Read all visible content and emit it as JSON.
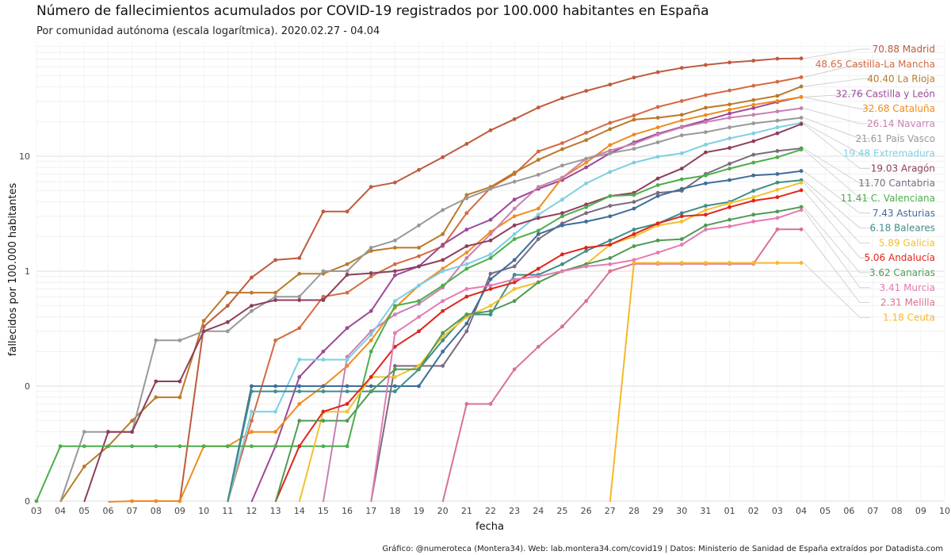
{
  "header": {
    "title": "Número de fallecimientos acumulados por COVID-19 registrados por 100.000 habitantes en España",
    "subtitle": "Por comunidad autónoma (escala logarítmica). 2020.02.27 - 04.04"
  },
  "caption": "Gráfico: @numeroteca (Montera34). Web: lab.montera34.com/covid19 | Datos: Ministerio de Sanidad de España extraídos por Datadista.com",
  "chart_data": {
    "type": "line",
    "title": "Número de fallecimientos acumulados por COVID-19 registrados por 100.000 habitantes en España",
    "xlabel": "fecha",
    "ylabel": "fallecidos por 100.000 habitantes",
    "y_scale": "log",
    "grid": true,
    "x": [
      "2020-03-03",
      "2020-03-04",
      "2020-03-05",
      "2020-03-06",
      "2020-03-07",
      "2020-03-08",
      "2020-03-09",
      "2020-03-10",
      "2020-03-11",
      "2020-03-12",
      "2020-03-13",
      "2020-03-14",
      "2020-03-15",
      "2020-03-16",
      "2020-03-17",
      "2020-03-18",
      "2020-03-19",
      "2020-03-20",
      "2020-03-21",
      "2020-03-22",
      "2020-03-23",
      "2020-03-24",
      "2020-03-25",
      "2020-03-26",
      "2020-03-27",
      "2020-03-28",
      "2020-03-29",
      "2020-03-30",
      "2020-03-31",
      "2020-04-01",
      "2020-04-02",
      "2020-04-03",
      "2020-04-04"
    ],
    "x_ticks": [
      "03",
      "04",
      "05",
      "06",
      "07",
      "08",
      "09",
      "10",
      "11",
      "12",
      "13",
      "14",
      "15",
      "16",
      "17",
      "18",
      "19",
      "20",
      "21",
      "22",
      "23",
      "24",
      "25",
      "26",
      "27",
      "28",
      "29",
      "30",
      "31",
      "01",
      "02",
      "03",
      "04",
      "05",
      "06",
      "07",
      "08",
      "09",
      "10"
    ],
    "y_ticks": [
      {
        "value": 0.01,
        "label": "0"
      },
      {
        "value": 0.1,
        "label": "0"
      },
      {
        "value": 1,
        "label": "1"
      },
      {
        "value": 10,
        "label": "10"
      }
    ],
    "ylim": [
      0.01,
      100
    ],
    "series": [
      {
        "name": "Madrid",
        "end_label": "70.88 Madrid",
        "color": "#be5b3d",
        "values": [
          null,
          null,
          null,
          null,
          null,
          null,
          null,
          0.33,
          0.5,
          0.88,
          1.25,
          1.3,
          3.3,
          3.3,
          5.4,
          5.9,
          7.6,
          9.8,
          12.8,
          16.8,
          21,
          26.5,
          32,
          37,
          42,
          48.3,
          53.8,
          58.6,
          62.2,
          65.4,
          67.7,
          70.5,
          70.88
        ]
      },
      {
        "name": "Castilla-La Mancha",
        "end_label": "48.65 Castilla-La Mancha",
        "color": "#d36b43",
        "values": [
          null,
          null,
          null,
          null,
          null,
          null,
          null,
          null,
          null,
          0.05,
          0.25,
          0.32,
          0.6,
          0.65,
          0.9,
          1.15,
          1.35,
          1.65,
          3.2,
          5.3,
          7,
          11,
          13,
          16,
          19.5,
          22.6,
          26.8,
          30.2,
          34,
          37.3,
          41,
          44.4,
          48.65
        ]
      },
      {
        "name": "La Rioja",
        "end_label": "40.40 La Rioja",
        "color": "#b97a2a",
        "values": [
          null,
          null,
          0.02,
          0.03,
          0.05,
          0.08,
          0.08,
          0.37,
          0.65,
          0.65,
          0.65,
          0.95,
          0.95,
          1.15,
          1.5,
          1.6,
          1.6,
          2.1,
          4.6,
          5.4,
          7.2,
          9.3,
          11.5,
          13.8,
          17.2,
          20.8,
          21.6,
          22.9,
          26.4,
          28.2,
          30.8,
          33.5,
          40.4
        ]
      },
      {
        "name": "Castilla y León",
        "end_label": "32.76 Castilla y León",
        "color": "#9d4898",
        "values": [
          null,
          null,
          null,
          null,
          null,
          null,
          null,
          null,
          null,
          null,
          0.03,
          0.12,
          0.2,
          0.32,
          0.45,
          0.92,
          1.1,
          1.7,
          2.3,
          2.8,
          4.2,
          5.2,
          6.2,
          8,
          10.6,
          13.2,
          15.7,
          18,
          20.5,
          23.5,
          26.2,
          29.6,
          32.76
        ]
      },
      {
        "name": "Cataluña",
        "end_label": "32.68 Cataluña",
        "color": "#f08c1c",
        "values": [
          null,
          null,
          null,
          null,
          0.01,
          0.01,
          0.01,
          0.03,
          0.03,
          0.04,
          0.04,
          0.07,
          0.1,
          0.15,
          0.25,
          0.48,
          0.75,
          1.05,
          1.45,
          2.2,
          3.0,
          3.5,
          6.5,
          8.8,
          12.5,
          15.4,
          17.8,
          20.5,
          22.8,
          25.4,
          28,
          30.2,
          32.68
        ]
      },
      {
        "name": "Navarra",
        "end_label": "26.14 Navarra",
        "color": "#c880b2",
        "values": [
          null,
          null,
          null,
          null,
          null,
          null,
          null,
          null,
          null,
          null,
          null,
          null,
          null,
          0.18,
          0.3,
          0.42,
          0.52,
          0.72,
          1.3,
          2.1,
          3.5,
          5.4,
          6.5,
          9.5,
          11.2,
          12.8,
          15.4,
          17.8,
          19.8,
          21.6,
          22.9,
          24.5,
          26.14
        ]
      },
      {
        "name": "País Vasco",
        "end_label": "21.61 País Vasco",
        "color": "#999999",
        "values": [
          null,
          null,
          0.04,
          0.04,
          0.04,
          0.25,
          0.25,
          0.3,
          0.3,
          0.45,
          0.6,
          0.6,
          1.0,
          1.0,
          1.6,
          1.85,
          2.5,
          3.4,
          4.3,
          5.2,
          6.0,
          6.9,
          8.3,
          9.5,
          10.6,
          11.6,
          13.2,
          15.2,
          16.2,
          17.8,
          19.3,
          20.4,
          21.61
        ]
      },
      {
        "name": "Extremadura",
        "end_label": "19.48 Extremadura",
        "color": "#7fcfe1",
        "values": [
          null,
          null,
          null,
          null,
          null,
          null,
          null,
          null,
          null,
          0.06,
          0.06,
          0.17,
          0.17,
          0.17,
          0.28,
          0.55,
          0.75,
          1.0,
          1.15,
          1.4,
          2.1,
          3.1,
          4.2,
          5.8,
          7.3,
          8.8,
          9.9,
          10.6,
          12.6,
          14.3,
          15.8,
          17.8,
          19.48
        ]
      },
      {
        "name": "Aragón",
        "end_label": "19.03 Aragón",
        "color": "#8e3e5c",
        "values": [
          null,
          null,
          null,
          0.04,
          0.04,
          0.11,
          0.11,
          0.3,
          0.36,
          0.5,
          0.56,
          0.56,
          0.56,
          0.93,
          0.96,
          1.0,
          1.1,
          1.25,
          1.65,
          1.85,
          2.5,
          2.9,
          3.2,
          3.8,
          4.5,
          4.8,
          6.4,
          7.8,
          10.8,
          11.8,
          13.5,
          15.8,
          19.03
        ]
      },
      {
        "name": "Cantabria",
        "end_label": "11.70 Cantabria",
        "color": "#7b6b7e",
        "values": [
          null,
          null,
          null,
          null,
          null,
          null,
          null,
          null,
          null,
          null,
          null,
          null,
          null,
          null,
          null,
          0.15,
          0.15,
          0.15,
          0.3,
          0.95,
          1.1,
          1.9,
          2.6,
          3.2,
          3.7,
          4.0,
          4.8,
          5.0,
          7.0,
          8.6,
          10.3,
          11.1,
          11.7
        ]
      },
      {
        "name": "C. Valenciana",
        "end_label": "11.41 C. Valenciana",
        "color": "#4dae4a",
        "values": [
          0.01,
          0.03,
          0.03,
          0.03,
          0.03,
          0.03,
          0.03,
          0.03,
          0.03,
          0.03,
          0.03,
          0.03,
          0.03,
          0.03,
          0.2,
          0.5,
          0.55,
          0.75,
          1.05,
          1.3,
          1.9,
          2.25,
          3.0,
          3.6,
          4.5,
          4.6,
          5.6,
          6.3,
          6.8,
          7.8,
          8.8,
          9.8,
          11.41
        ]
      },
      {
        "name": "Asturias",
        "end_label": "7.43 Asturias",
        "color": "#3e6e9b",
        "values": [
          null,
          null,
          null,
          null,
          null,
          null,
          null,
          null,
          null,
          0.1,
          0.1,
          0.1,
          0.1,
          0.1,
          0.1,
          0.1,
          0.1,
          0.2,
          0.35,
          0.85,
          1.25,
          2.1,
          2.5,
          2.7,
          3.0,
          3.5,
          4.5,
          5.2,
          5.8,
          6.2,
          6.8,
          7.0,
          7.43
        ]
      },
      {
        "name": "Baleares",
        "end_label": "6.18 Baleares",
        "color": "#3f8e8a",
        "values": [
          null,
          null,
          null,
          null,
          null,
          null,
          null,
          null,
          null,
          0.09,
          0.09,
          0.09,
          0.09,
          0.09,
          0.09,
          0.09,
          0.14,
          0.25,
          0.42,
          0.42,
          0.93,
          0.93,
          1.15,
          1.5,
          1.85,
          2.3,
          2.6,
          3.2,
          3.7,
          4.0,
          5.0,
          5.9,
          6.18
        ]
      },
      {
        "name": "Galicia",
        "end_label": "5.89 Galicia",
        "color": "#f2c12e",
        "values": [
          null,
          null,
          null,
          null,
          null,
          null,
          null,
          null,
          null,
          null,
          null,
          null,
          0.06,
          0.06,
          0.12,
          0.12,
          0.15,
          0.27,
          0.4,
          0.5,
          0.7,
          0.8,
          1.0,
          1.15,
          1.7,
          2.0,
          2.5,
          2.7,
          3.4,
          3.9,
          4.4,
          5.1,
          5.89
        ]
      },
      {
        "name": "Andalucía",
        "end_label": "5.06 Andalucía",
        "color": "#e0251c",
        "values": [
          null,
          null,
          null,
          null,
          null,
          null,
          null,
          null,
          null,
          null,
          null,
          0.03,
          0.06,
          0.07,
          0.12,
          0.22,
          0.3,
          0.45,
          0.6,
          0.7,
          0.8,
          1.05,
          1.4,
          1.6,
          1.7,
          2.1,
          2.6,
          3.0,
          3.1,
          3.6,
          4.1,
          4.4,
          5.06
        ]
      },
      {
        "name": "Canarias",
        "end_label": "3.62 Canarias",
        "color": "#519a55",
        "values": [
          null,
          null,
          null,
          null,
          null,
          null,
          null,
          null,
          null,
          null,
          null,
          0.05,
          0.05,
          0.05,
          0.09,
          0.14,
          0.14,
          0.29,
          0.42,
          0.45,
          0.55,
          0.8,
          1.0,
          1.15,
          1.3,
          1.65,
          1.85,
          1.9,
          2.5,
          2.8,
          3.1,
          3.3,
          3.62
        ]
      },
      {
        "name": "Murcia",
        "end_label": "3.41 Murcia",
        "color": "#e47bb4",
        "values": [
          null,
          null,
          null,
          null,
          null,
          null,
          null,
          null,
          null,
          null,
          null,
          null,
          null,
          null,
          null,
          0.29,
          0.4,
          0.55,
          0.7,
          0.75,
          0.85,
          0.9,
          1.0,
          1.1,
          1.15,
          1.25,
          1.45,
          1.7,
          2.3,
          2.45,
          2.7,
          2.9,
          3.41
        ]
      },
      {
        "name": "Melilla",
        "end_label": "2.31 Melilla",
        "color": "#d97194",
        "values": [
          null,
          null,
          null,
          null,
          null,
          null,
          null,
          null,
          null,
          null,
          null,
          null,
          null,
          null,
          null,
          null,
          null,
          null,
          0.07,
          0.07,
          0.14,
          0.22,
          0.33,
          0.55,
          1.0,
          1.16,
          1.16,
          1.16,
          1.16,
          1.16,
          1.16,
          2.31,
          2.31
        ]
      },
      {
        "name": "Ceuta",
        "end_label": "1.18 Ceuta",
        "color": "#f6b82a",
        "values": [
          null,
          null,
          null,
          null,
          null,
          null,
          null,
          null,
          null,
          null,
          null,
          null,
          null,
          null,
          null,
          null,
          null,
          null,
          null,
          null,
          null,
          null,
          null,
          null,
          null,
          1.18,
          1.18,
          1.18,
          1.18,
          1.18,
          1.18,
          1.18,
          1.18
        ]
      }
    ]
  }
}
